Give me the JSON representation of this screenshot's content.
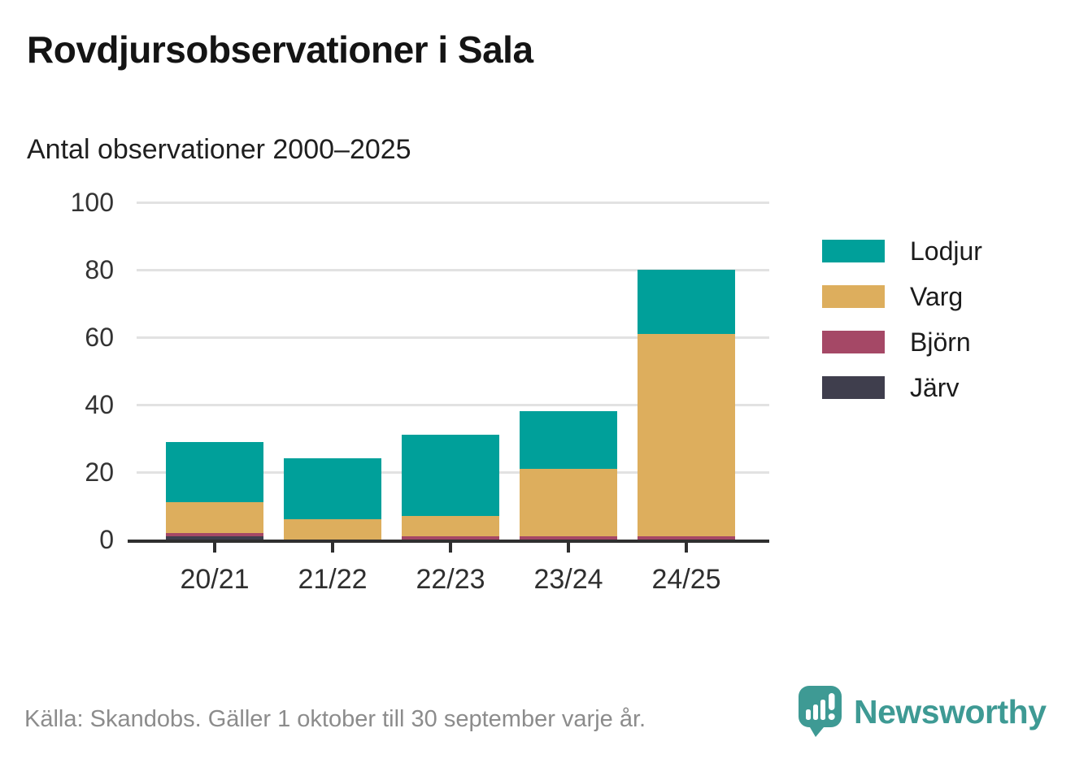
{
  "header": {
    "title": "Rovdjursobservationer i Sala",
    "subtitle": "Antal observationer 2000–2025"
  },
  "chart_data": {
    "type": "bar",
    "stacked": true,
    "title": "Rovdjursobservationer i Sala",
    "subtitle": "Antal observationer 2000–2025",
    "categories": [
      "20/21",
      "21/22",
      "22/23",
      "23/24",
      "24/25"
    ],
    "series": [
      {
        "name": "Järv",
        "color": "#3f3e4d",
        "values": [
          1,
          0,
          0,
          0,
          0
        ]
      },
      {
        "name": "Björn",
        "color": "#a54866",
        "values": [
          1,
          0,
          1,
          1,
          1
        ]
      },
      {
        "name": "Varg",
        "color": "#ddae5d",
        "values": [
          9,
          6,
          6,
          20,
          60
        ]
      },
      {
        "name": "Lodjur",
        "color": "#00a09a",
        "values": [
          18,
          18,
          24,
          17,
          19
        ]
      }
    ],
    "totals": [
      29,
      24,
      31,
      38,
      80
    ],
    "xlabel": "",
    "ylabel": "",
    "ylim": [
      0,
      100
    ],
    "yticks": [
      0,
      20,
      40,
      60,
      80,
      100
    ],
    "grid": true,
    "legend": {
      "position": "right",
      "order": [
        "Lodjur",
        "Varg",
        "Björn",
        "Järv"
      ]
    }
  },
  "footer": {
    "source": "Källa: Skandobs. Gäller 1 oktober till 30 september varje år.",
    "brand": "Newsworthy"
  },
  "colors": {
    "axis": "#2f2f2f",
    "gridline": "#e2e2e2",
    "tick_label": "#333333",
    "footer_text": "#8c8c8c",
    "brand_teal": "#3e9a94",
    "background": "#ffffff"
  }
}
